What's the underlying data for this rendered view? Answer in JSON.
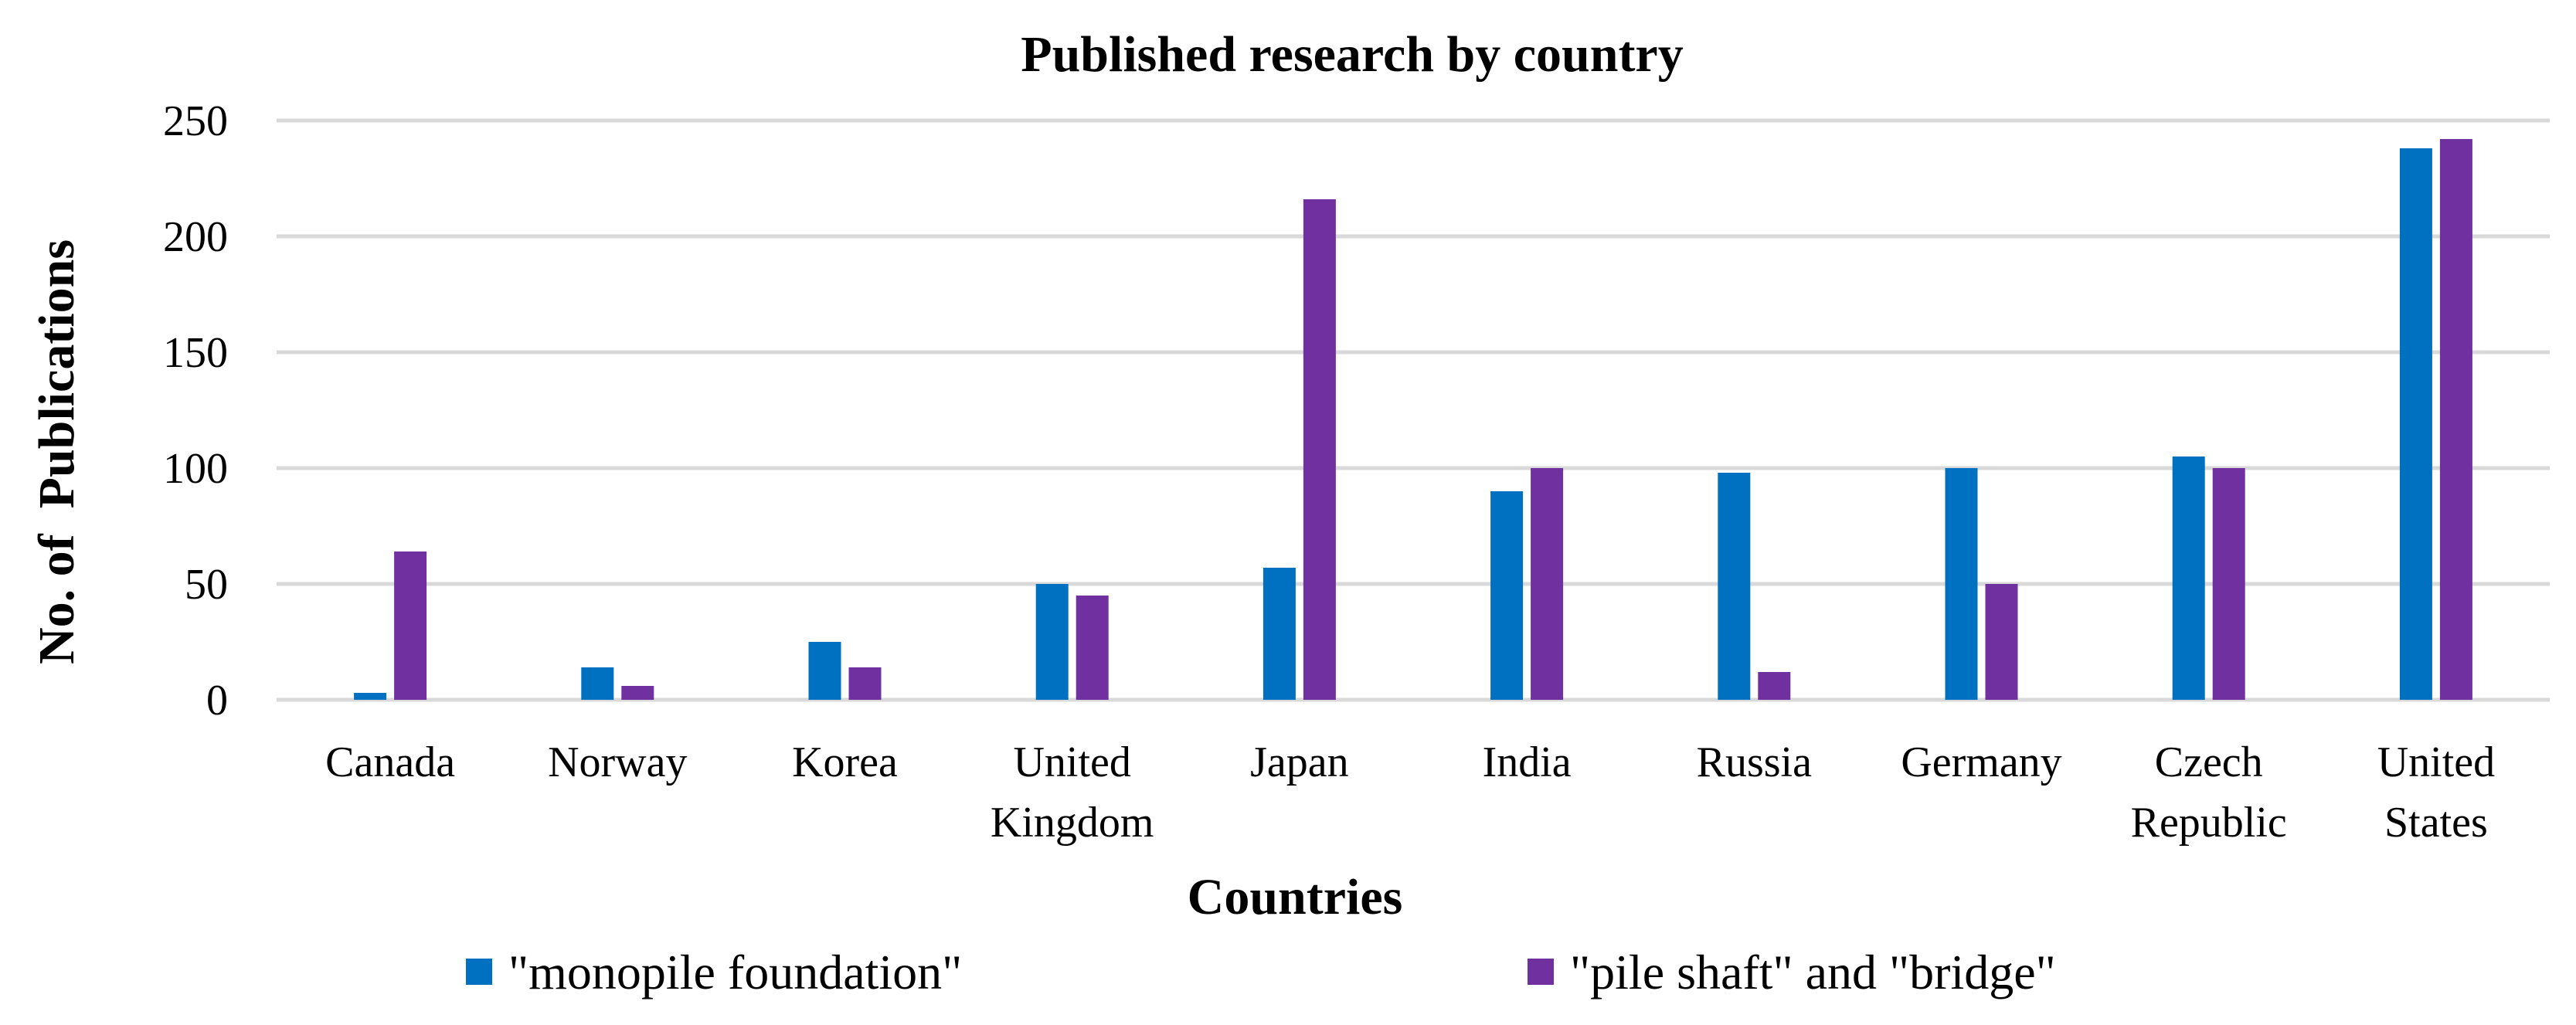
{
  "chart_data": {
    "type": "bar",
    "title": "Published research by country",
    "xlabel": "Countries",
    "ylabel": "No. of  Publications",
    "ylim": [
      0,
      250
    ],
    "yticks": [
      0,
      50,
      100,
      150,
      200,
      250
    ],
    "categories": [
      [
        "Canada"
      ],
      [
        "Norway"
      ],
      [
        "Korea"
      ],
      [
        "United",
        "Kingdom"
      ],
      [
        "Japan"
      ],
      [
        "India"
      ],
      [
        "Russia"
      ],
      [
        "Germany"
      ],
      [
        "Czech",
        "Republic"
      ],
      [
        "United",
        "States"
      ]
    ],
    "series": [
      {
        "name": "\"monopile foundation\"",
        "color": "#0070C0",
        "values": [
          3,
          14,
          25,
          50,
          57,
          90,
          98,
          100,
          105,
          238
        ]
      },
      {
        "name": "\"pile shaft\" and \"bridge\"",
        "color": "#7030A0",
        "values": [
          64,
          6,
          14,
          45,
          216,
          100,
          12,
          50,
          100,
          242
        ]
      }
    ],
    "grid": true,
    "legend_position": "bottom"
  }
}
